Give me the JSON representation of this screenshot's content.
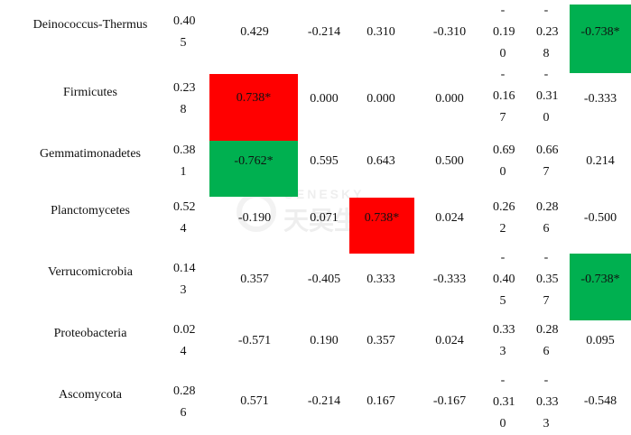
{
  "rows": [
    {
      "name": "Deinococcus-Thermus",
      "c1": "0.40\n5",
      "c2": "0.429",
      "c3": "-0.214",
      "c4": "0.310",
      "c5": "-0.310",
      "c6": "-\n0.19\n0",
      "c7": "-\n0.23\n8",
      "c8": "-0.738*"
    },
    {
      "name": "Firmicutes",
      "c1": "0.23\n8",
      "c2": "0.738*",
      "c3": "0.000",
      "c4": "0.000",
      "c5": "0.000",
      "c6": "-\n0.16\n7",
      "c7": "-\n0.31\n0",
      "c8": "-0.333"
    },
    {
      "name": "Gemmatimonadetes",
      "c1": "0.38\n1",
      "c2": "-0.762*",
      "c3": "0.595",
      "c4": "0.643",
      "c5": "0.500",
      "c6": "0.69\n0",
      "c7": "0.66\n7",
      "c8": "0.214"
    },
    {
      "name": "Planctomycetes",
      "c1": "0.52\n4",
      "c2": "-0.190",
      "c3": "0.071",
      "c4": "0.738*",
      "c5": "0.024",
      "c6": "0.26\n2",
      "c7": "0.28\n6",
      "c8": "-0.500"
    },
    {
      "name": "Verrucomicrobia",
      "c1": "0.14\n3",
      "c2": "0.357",
      "c3": "-0.405",
      "c4": "0.333",
      "c5": "-0.333",
      "c6": "-\n0.40\n5",
      "c7": "-\n0.35\n7",
      "c8": "-0.738*"
    },
    {
      "name": "Proteobacteria",
      "c1": "0.02\n4",
      "c2": "-0.571",
      "c3": "0.190",
      "c4": "0.357",
      "c5": "0.024",
      "c6": "0.33\n3",
      "c7": "0.28\n6",
      "c8": "0.095"
    },
    {
      "name": "Ascomycota",
      "c1": "0.28\n6",
      "c2": "0.571",
      "c3": "-0.214",
      "c4": "0.167",
      "c5": "-0.167",
      "c6": "-\n0.31\n0",
      "c7": "-\n0.33\n3",
      "c8": "-0.548"
    }
  ],
  "highlight_colors": {
    "positive": "#ff0000",
    "negative": "#00b050"
  },
  "watermark": {
    "en": "GENESKY",
    "cn": "天昊生物"
  }
}
